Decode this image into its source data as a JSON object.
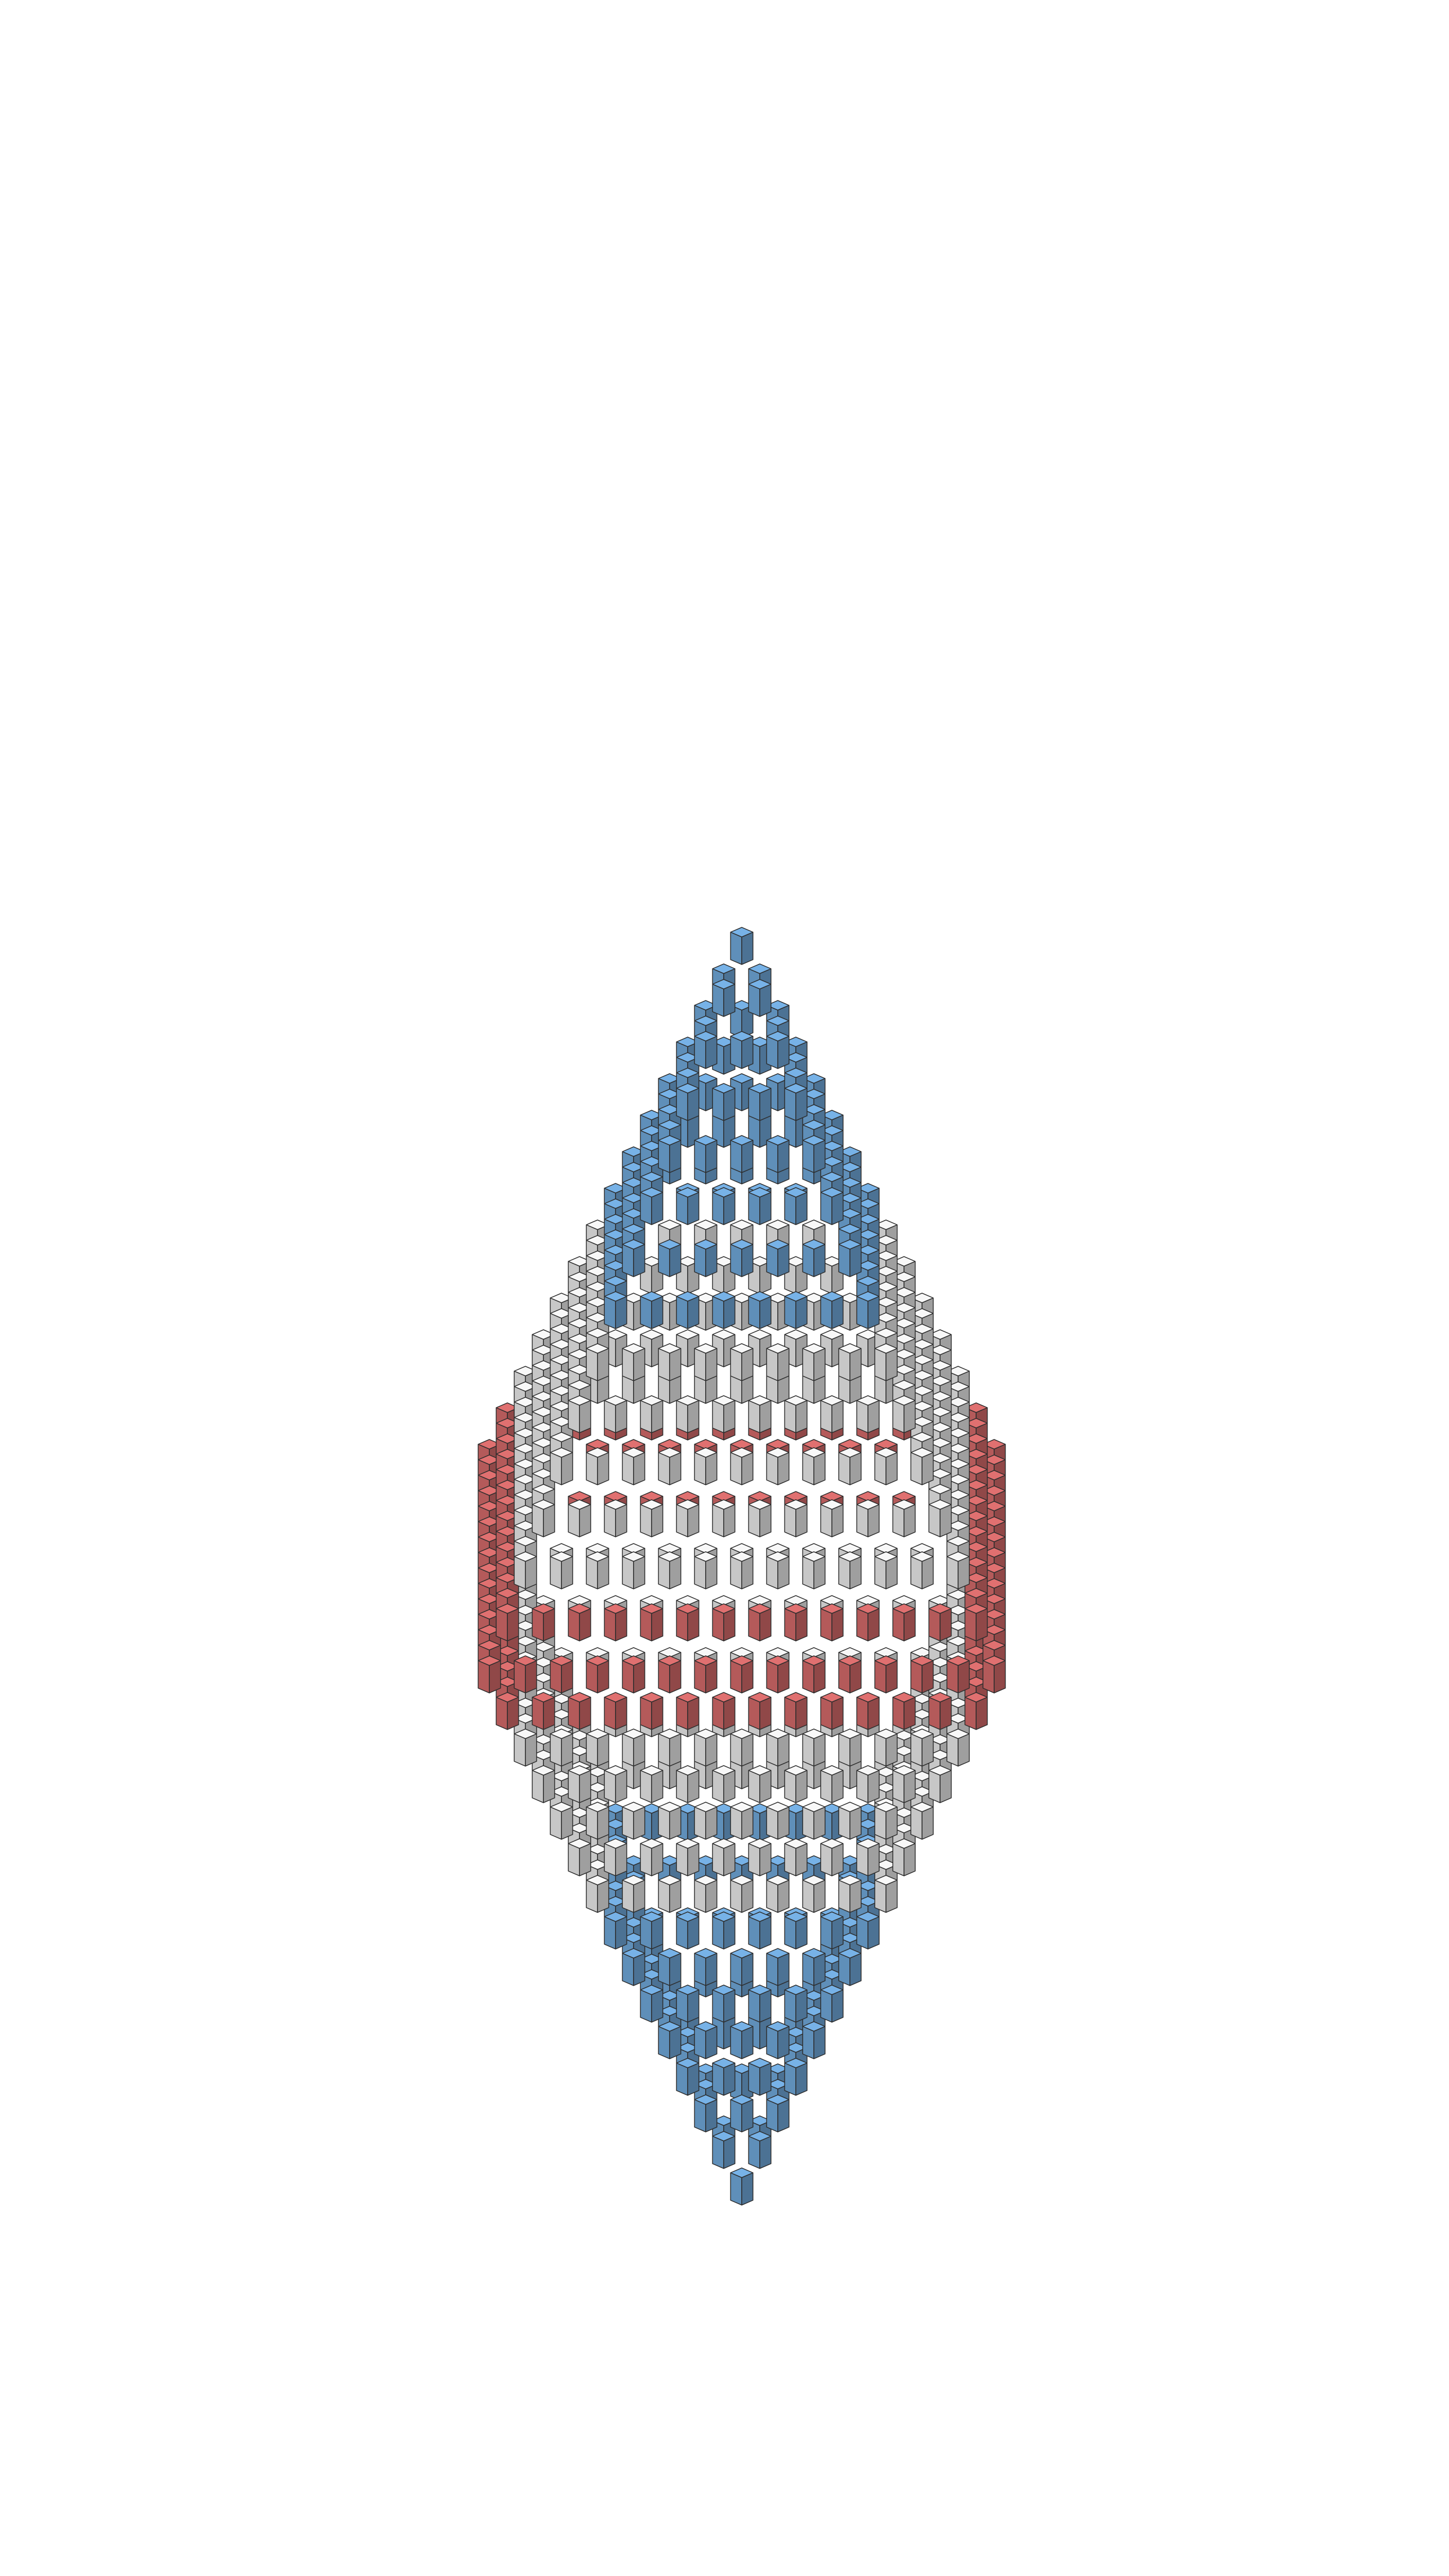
{
  "figure": {
    "kind": "voxel-octahedron",
    "radius": 14,
    "hole_radius": 3,
    "cube_fill_ratio": 0.62,
    "colors": {
      "outer": "#6a9fce",
      "middle": "#dddddd",
      "inner": "#c86464",
      "edge": "#2d2d2d",
      "background": "#ffffff"
    },
    "layers": [
      {
        "name": "outer",
        "from_norm_y": 0.43,
        "to_norm_y": 1.0
      },
      {
        "name": "middle",
        "from_norm_y": 0.14,
        "to_norm_y": 0.43
      },
      {
        "name": "inner",
        "from_norm_y": 0.0,
        "to_norm_y": 0.14
      }
    ]
  }
}
